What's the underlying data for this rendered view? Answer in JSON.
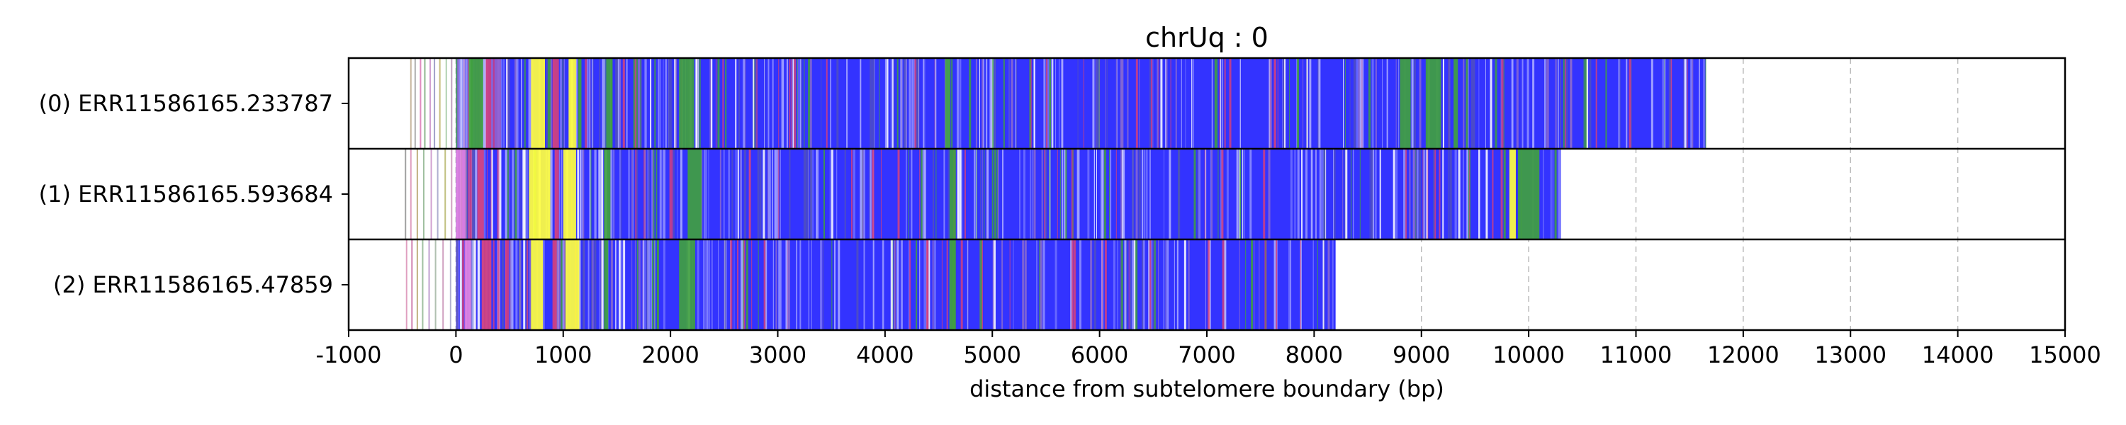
{
  "chart_data": {
    "type": "bar",
    "title": "chrUq : 0",
    "xlabel": "distance from subtelomere boundary (bp)",
    "ylabel": "",
    "xlim": [
      -1000,
      15000
    ],
    "xticks": [
      -1000,
      0,
      1000,
      2000,
      3000,
      4000,
      5000,
      6000,
      7000,
      8000,
      9000,
      10000,
      11000,
      12000,
      13000,
      14000,
      15000
    ],
    "xtick_labels": [
      "-1000",
      "0",
      "1000",
      "2000",
      "3000",
      "4000",
      "5000",
      "6000",
      "7000",
      "8000",
      "9000",
      "10000",
      "11000",
      "12000",
      "13000",
      "14000",
      "15000"
    ],
    "grid": "vertical dashed",
    "rows": [
      {
        "label": "(0) ERR11586165.233787",
        "start": -450,
        "dense_start": 0,
        "end": 11650,
        "sparse_lines": [
          {
            "x": -420,
            "color": "#c9b8a0"
          },
          {
            "x": -380,
            "color": "#b0b0b0"
          },
          {
            "x": -330,
            "color": "#e08ac0"
          },
          {
            "x": -290,
            "color": "#8fb58f"
          },
          {
            "x": -240,
            "color": "#d0a0d0"
          },
          {
            "x": -200,
            "color": "#a0a0c8"
          },
          {
            "x": -150,
            "color": "#c8c080"
          },
          {
            "x": -90,
            "color": "#b0d0b0"
          },
          {
            "x": -40,
            "color": "#c0a0c0"
          }
        ],
        "bands": [
          {
            "start": 120,
            "end": 250,
            "color": "#40a040"
          },
          {
            "start": 280,
            "end": 330,
            "color": "#d04080"
          },
          {
            "start": 360,
            "end": 420,
            "color": "#9060d0"
          },
          {
            "start": 700,
            "end": 830,
            "color": "#ffff40"
          },
          {
            "start": 900,
            "end": 960,
            "color": "#d04080"
          },
          {
            "start": 1050,
            "end": 1120,
            "color": "#ffff40"
          },
          {
            "start": 1140,
            "end": 1170,
            "color": "#40a040"
          },
          {
            "start": 1400,
            "end": 1460,
            "color": "#40a040"
          },
          {
            "start": 2080,
            "end": 2220,
            "color": "#40a040"
          },
          {
            "start": 4560,
            "end": 4610,
            "color": "#40a040"
          },
          {
            "start": 8800,
            "end": 8900,
            "color": "#40a040"
          },
          {
            "start": 9040,
            "end": 9180,
            "color": "#40a040"
          },
          {
            "start": 9300,
            "end": 9340,
            "color": "#40a040"
          }
        ],
        "line_seed": 11
      },
      {
        "label": "(1) ERR11586165.593684",
        "start": -490,
        "dense_start": 0,
        "end": 10300,
        "sparse_lines": [
          {
            "x": -470,
            "color": "#a0a0a0"
          },
          {
            "x": -420,
            "color": "#e0a0c0"
          },
          {
            "x": -360,
            "color": "#c0b080"
          },
          {
            "x": -300,
            "color": "#a0c0a0"
          },
          {
            "x": -230,
            "color": "#d0a0d0"
          },
          {
            "x": -170,
            "color": "#b0b0d0"
          },
          {
            "x": -100,
            "color": "#c0c080"
          },
          {
            "x": -40,
            "color": "#d0a0c0"
          }
        ],
        "bands": [
          {
            "start": 0,
            "end": 90,
            "color": "#e080e0"
          },
          {
            "start": 200,
            "end": 260,
            "color": "#d04080"
          },
          {
            "start": 680,
            "end": 880,
            "color": "#ffff40"
          },
          {
            "start": 920,
            "end": 960,
            "color": "#d04080"
          },
          {
            "start": 1000,
            "end": 1120,
            "color": "#ffff40"
          },
          {
            "start": 1380,
            "end": 1440,
            "color": "#40a040"
          },
          {
            "start": 2160,
            "end": 2290,
            "color": "#40a040"
          },
          {
            "start": 4600,
            "end": 4660,
            "color": "#40a040"
          },
          {
            "start": 9820,
            "end": 9880,
            "color": "#ffff40"
          },
          {
            "start": 9900,
            "end": 10100,
            "color": "#40a040"
          }
        ],
        "line_seed": 23
      },
      {
        "label": "(2) ERR11586165.47859",
        "start": -480,
        "dense_start": 0,
        "end": 8200,
        "sparse_lines": [
          {
            "x": -460,
            "color": "#e0a0c0"
          },
          {
            "x": -410,
            "color": "#d080b0"
          },
          {
            "x": -360,
            "color": "#c0b080"
          },
          {
            "x": -310,
            "color": "#a0c0a0"
          },
          {
            "x": -250,
            "color": "#c0a0d0"
          },
          {
            "x": -190,
            "color": "#b0c0b0"
          },
          {
            "x": -120,
            "color": "#d0a0c0"
          },
          {
            "x": -50,
            "color": "#b0b0d0"
          }
        ],
        "bands": [
          {
            "start": 80,
            "end": 140,
            "color": "#e080e0"
          },
          {
            "start": 240,
            "end": 330,
            "color": "#d04080"
          },
          {
            "start": 700,
            "end": 810,
            "color": "#ffff40"
          },
          {
            "start": 900,
            "end": 940,
            "color": "#d04080"
          },
          {
            "start": 1020,
            "end": 1150,
            "color": "#ffff40"
          },
          {
            "start": 1380,
            "end": 1420,
            "color": "#40a040"
          },
          {
            "start": 2080,
            "end": 2230,
            "color": "#40a040"
          },
          {
            "start": 4600,
            "end": 4660,
            "color": "#40a040"
          }
        ],
        "line_seed": 37
      }
    ],
    "colors": {
      "base": "#3333ff",
      "grid": "#bbbbbb",
      "frame": "#000000",
      "line_palette": [
        "#7070ff",
        "#9090ff",
        "#40a040",
        "#8a6ad0",
        "#5050c0",
        "#b0b0ff",
        "#ffffff",
        "#d04080"
      ]
    }
  }
}
